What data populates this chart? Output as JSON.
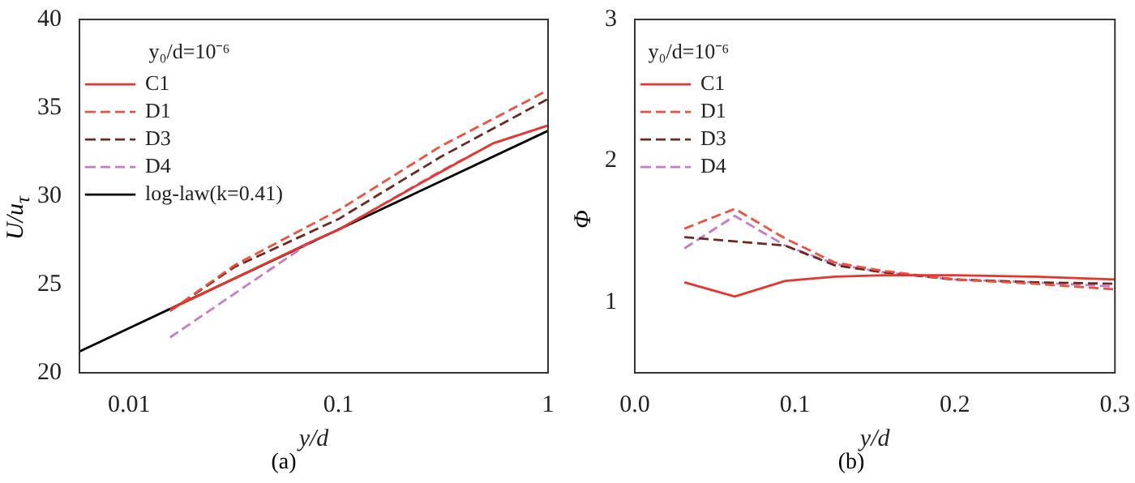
{
  "chart_data": [
    {
      "type": "line",
      "xlabel": "y/d",
      "ylabel": "U/u$_{τ}$",
      "legend_title": "y₀/d=10⁻⁶",
      "legend": "top left",
      "log": "x",
      "grid": false,
      "marker": "none",
      "xlim": [
        0.0058,
        1
      ],
      "xticks": [
        0.01,
        0.1,
        1
      ],
      "ylim": [
        20,
        40
      ],
      "yticks": [
        20,
        25,
        30,
        35,
        40
      ],
      "annotations": [
        "(a)"
      ],
      "series": [
        {
          "name": "C1",
          "color": "#e8352c",
          "line_style": "solid",
          "x": [
            0.0157,
            0.0735,
            0.1,
            0.3,
            0.55,
            1
          ],
          "values": [
            23.6,
            27.4,
            28.1,
            31.3,
            33.0,
            34.0
          ]
        },
        {
          "name": "D1",
          "color": "#f0503e",
          "line_style": "dashed",
          "x": [
            0.0157,
            0.032,
            0.1,
            0.305,
            1
          ],
          "values": [
            23.5,
            26.1,
            29.2,
            32.8,
            36.0
          ]
        },
        {
          "name": "D3",
          "color": "#6b2a20",
          "line_style": "dashed",
          "x": [
            0.0157,
            0.032,
            0.1,
            0.305,
            1
          ],
          "values": [
            23.5,
            26.0,
            28.7,
            32.2,
            35.5
          ]
        },
        {
          "name": "D4",
          "color": "#c77ac8",
          "line_style": "dashed",
          "x": [
            0.0157,
            0.0735,
            0.1,
            0.305,
            0.552,
            1
          ],
          "values": [
            22.0,
            27.4,
            28.1,
            31.4,
            33.0,
            34.0
          ]
        },
        {
          "name": "log-law(k=0.41)",
          "color": "#000000",
          "line_style": "solid",
          "x": [
            0.0058,
            1
          ],
          "values": [
            21.2,
            33.7
          ]
        }
      ]
    },
    {
      "type": "line",
      "xlabel": "y/d",
      "ylabel": "Φ",
      "legend_title": "y₀/d=10⁻⁶",
      "legend": "top left",
      "grid": false,
      "marker": "none",
      "xlim": [
        0,
        0.3
      ],
      "xticks": [
        {
          "value": 0,
          "label": "0.0"
        },
        0.1,
        0.2,
        0.3
      ],
      "ylim": [
        0.5,
        3
      ],
      "yticks": [
        1,
        2,
        3
      ],
      "annotations": [
        "(b)"
      ],
      "x": [
        0.031,
        0.0625,
        0.094,
        0.125,
        0.156,
        0.2,
        0.25,
        0.3
      ],
      "series": [
        {
          "name": "C1",
          "color": "#e8352c",
          "line_style": "solid",
          "values": [
            1.14,
            1.04,
            1.15,
            1.18,
            1.19,
            1.19,
            1.18,
            1.16
          ]
        },
        {
          "name": "D1",
          "color": "#f0503e",
          "line_style": "dashed",
          "values": [
            1.52,
            1.66,
            1.45,
            1.28,
            1.22,
            1.16,
            1.13,
            1.09
          ]
        },
        {
          "name": "D3",
          "color": "#6b2a20",
          "line_style": "dashed",
          "values": [
            1.46,
            1.43,
            1.4,
            1.26,
            1.21,
            1.16,
            1.14,
            1.13
          ]
        },
        {
          "name": "D4",
          "color": "#c77ac8",
          "line_style": "dashed",
          "values": [
            1.38,
            1.61,
            1.4,
            1.27,
            1.21,
            1.16,
            1.14,
            1.11
          ]
        }
      ]
    }
  ]
}
